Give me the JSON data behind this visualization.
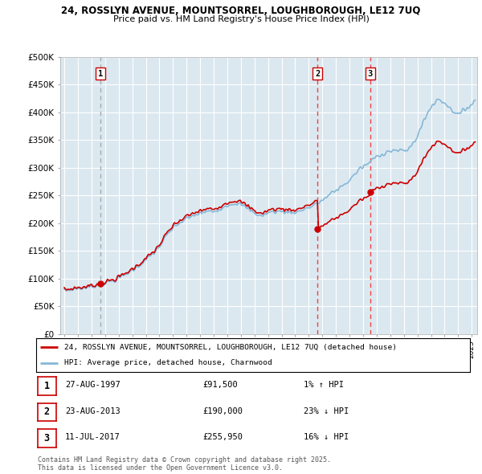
{
  "title_line1": "24, ROSSLYN AVENUE, MOUNTSORREL, LOUGHBOROUGH, LE12 7UQ",
  "title_line2": "Price paid vs. HM Land Registry's House Price Index (HPI)",
  "ylim": [
    0,
    500000
  ],
  "yticks": [
    0,
    50000,
    100000,
    150000,
    200000,
    250000,
    300000,
    350000,
    400000,
    450000,
    500000
  ],
  "ytick_labels": [
    "£0",
    "£50K",
    "£100K",
    "£150K",
    "£200K",
    "£250K",
    "£300K",
    "£350K",
    "£400K",
    "£450K",
    "£500K"
  ],
  "sale_prices": [
    91500,
    190000,
    255950
  ],
  "sale_labels": [
    "1",
    "2",
    "3"
  ],
  "sale_decimal": [
    1997.6575,
    2013.6411,
    2017.526
  ],
  "hpi_color": "#85b8d8",
  "price_color": "#cc0000",
  "vline1_color": "#aaaaaa",
  "vline23_color": "#ee4444",
  "chart_bg": "#dce8f0",
  "background_color": "#ffffff",
  "grid_color": "#ffffff",
  "legend_label_price": "24, ROSSLYN AVENUE, MOUNTSORREL, LOUGHBOROUGH, LE12 7UQ (detached house)",
  "legend_label_hpi": "HPI: Average price, detached house, Charnwood",
  "table_entries": [
    {
      "num": "1",
      "date": "27-AUG-1997",
      "price": "£91,500",
      "rel": "1% ↑ HPI"
    },
    {
      "num": "2",
      "date": "23-AUG-2013",
      "price": "£190,000",
      "rel": "23% ↓ HPI"
    },
    {
      "num": "3",
      "date": "11-JUL-2017",
      "price": "£255,950",
      "rel": "16% ↓ HPI"
    }
  ],
  "footnote": "Contains HM Land Registry data © Crown copyright and database right 2025.\nThis data is licensed under the Open Government Licence v3.0."
}
